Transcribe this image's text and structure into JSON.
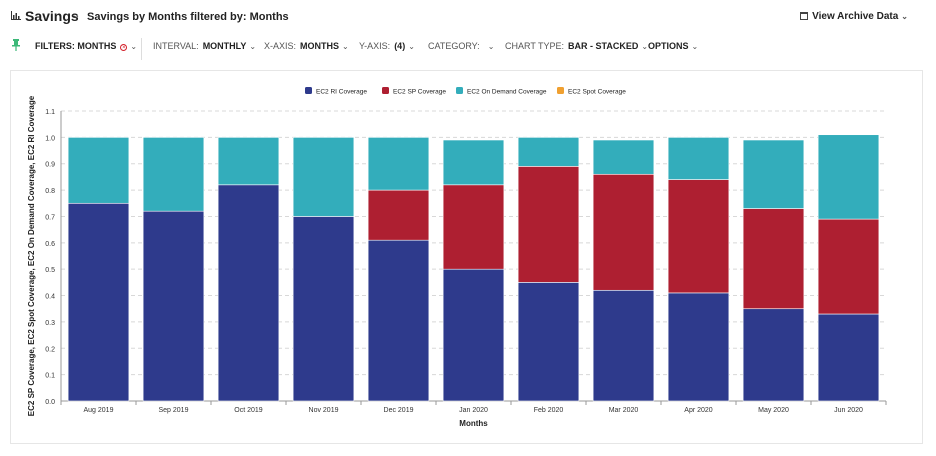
{
  "header": {
    "title": "Savings",
    "subtitle": "Savings by Months filtered by: Months",
    "archive_label": "View Archive Data"
  },
  "toolbar": {
    "filters_label": "FILTERS: MONTHS",
    "interval_label": "INTERVAL:",
    "interval_value": "MONTHLY",
    "xaxis_label": "X-AXIS:",
    "xaxis_value": "MONTHS",
    "yaxis_label": "Y-AXIS:",
    "yaxis_value": "(4)",
    "category_label": "CATEGORY:",
    "charttype_label": "CHART TYPE:",
    "charttype_value": "BAR - STACKED",
    "options_label": "OPTIONS"
  },
  "colors": {
    "ri": "#2e3a8c",
    "sp": "#ae1f31",
    "od": "#33adbb",
    "spot": "#f0a030",
    "pin": "#3cb878"
  },
  "chart_data": {
    "type": "bar",
    "stacked": true,
    "title": "",
    "xlabel": "Months",
    "ylabel": "EC2 SP Coverage, EC2 Spot Coverage, EC2 On Demand Coverage, EC2 RI Coverage",
    "ylim": [
      0,
      1.1
    ],
    "yticks": [
      "0.0",
      "0.1",
      "0.2",
      "0.3",
      "0.4",
      "0.5",
      "0.6",
      "0.7",
      "0.8",
      "0.9",
      "1.0",
      "1.1"
    ],
    "legend_position": "top-center",
    "categories": [
      "Aug 2019",
      "Sep 2019",
      "Oct 2019",
      "Nov 2019",
      "Dec 2019",
      "Jan 2020",
      "Feb 2020",
      "Mar 2020",
      "Apr 2020",
      "May 2020",
      "Jun 2020"
    ],
    "series": [
      {
        "name": "EC2 RI Coverage",
        "color_key": "ri",
        "values": [
          0.75,
          0.72,
          0.82,
          0.7,
          0.61,
          0.5,
          0.45,
          0.42,
          0.41,
          0.35,
          0.33
        ]
      },
      {
        "name": "EC2 SP Coverage",
        "color_key": "sp",
        "values": [
          0.0,
          0.0,
          0.0,
          0.0,
          0.19,
          0.32,
          0.44,
          0.44,
          0.43,
          0.38,
          0.36
        ]
      },
      {
        "name": "EC2 On Demand Coverage",
        "color_key": "od",
        "values": [
          0.25,
          0.28,
          0.18,
          0.3,
          0.2,
          0.17,
          0.11,
          0.13,
          0.16,
          0.26,
          0.32
        ]
      },
      {
        "name": "EC2 Spot Coverage",
        "color_key": "spot",
        "values": [
          0.0,
          0.0,
          0.0,
          0.0,
          0.0,
          0.0,
          0.0,
          0.0,
          0.0,
          0.0,
          0.0
        ]
      }
    ]
  }
}
